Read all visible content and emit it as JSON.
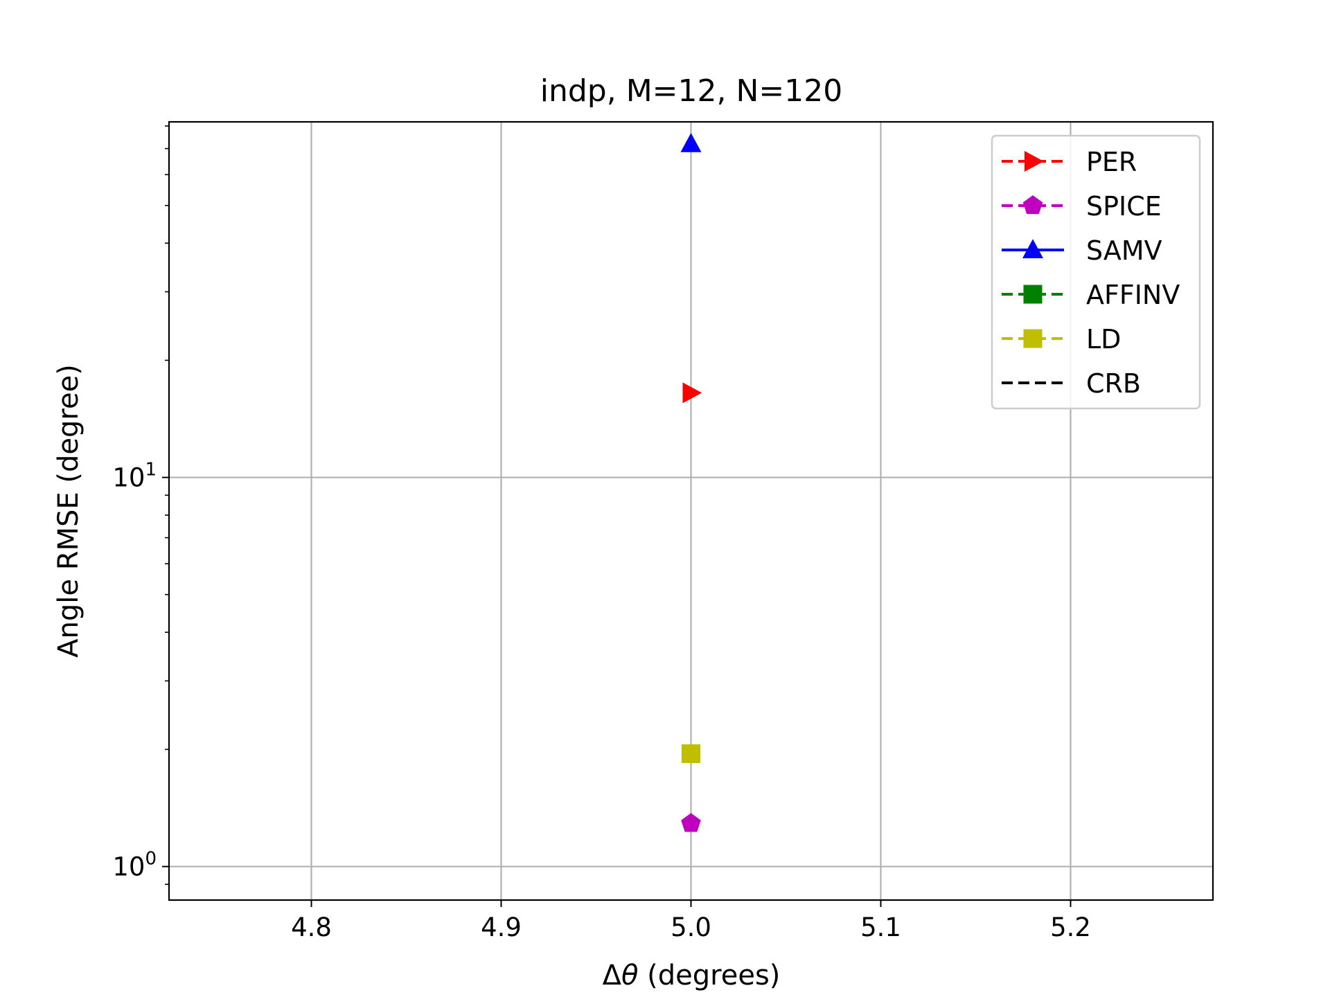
{
  "chart_data": {
    "type": "scatter",
    "title": "indp, M=12, N=120",
    "xlabel_prefix": "Δ",
    "xlabel_symbol": "θ",
    "xlabel_suffix": " (degrees)",
    "ylabel": "Angle RMSE (degree)",
    "y_scale": "log",
    "xlim": [
      4.725,
      5.275
    ],
    "ylim": [
      0.82,
      82
    ],
    "grid": true,
    "legend_position": "upper-right",
    "x_ticks": [
      {
        "value": 4.8,
        "label": "4.8"
      },
      {
        "value": 4.9,
        "label": "4.9"
      },
      {
        "value": 5.0,
        "label": "5.0"
      },
      {
        "value": 5.1,
        "label": "5.1"
      },
      {
        "value": 5.2,
        "label": "5.2"
      }
    ],
    "y_ticks_major": [
      {
        "value": 1,
        "base": "10",
        "exp": "0"
      },
      {
        "value": 10,
        "base": "10",
        "exp": "1"
      }
    ],
    "y_ticks_minor": [
      0.9,
      2,
      3,
      4,
      5,
      6,
      7,
      8,
      9,
      20,
      30,
      40,
      50,
      60,
      70,
      80
    ],
    "series": [
      {
        "name": "PER",
        "color": "#ff0000",
        "marker": "triangle-right",
        "line": "dashed",
        "x": [
          5.0
        ],
        "y": [
          16.5
        ]
      },
      {
        "name": "SPICE",
        "color": "#bf00bf",
        "marker": "pentagon",
        "line": "dashed",
        "x": [
          5.0
        ],
        "y": [
          1.29
        ]
      },
      {
        "name": "SAMV",
        "color": "#0000ff",
        "marker": "triangle-up",
        "line": "solid",
        "x": [
          5.0
        ],
        "y": [
          72
        ]
      },
      {
        "name": "AFFINV",
        "color": "#008000",
        "marker": "square",
        "line": "dashed",
        "x": [],
        "y": []
      },
      {
        "name": "LD",
        "color": "#bfbf00",
        "marker": "square",
        "line": "dashed",
        "x": [
          5.0
        ],
        "y": [
          1.95
        ]
      },
      {
        "name": "CRB",
        "color": "#000000",
        "marker": "none",
        "line": "dashed",
        "x": [],
        "y": []
      }
    ]
  }
}
